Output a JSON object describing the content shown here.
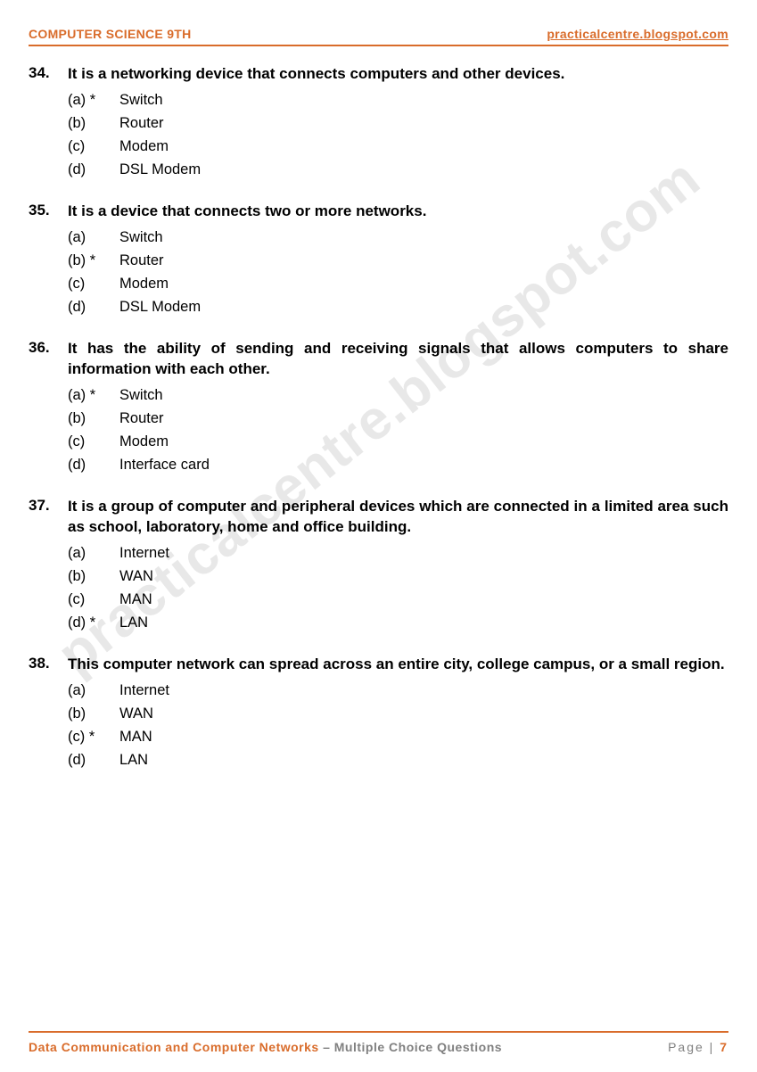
{
  "header": {
    "left": "COMPUTER SCIENCE 9TH",
    "right": "practicalcentre.blogspot.com"
  },
  "watermark": "practicalcentre.blogspot.com",
  "questions": [
    {
      "num": "34.",
      "text": "It is a networking device that connects computers and other devices.",
      "options": [
        {
          "label": "(a) *",
          "text": "Switch"
        },
        {
          "label": "(b)",
          "text": "Router"
        },
        {
          "label": "(c)",
          "text": "Modem"
        },
        {
          "label": "(d)",
          "text": "DSL Modem"
        }
      ]
    },
    {
      "num": "35.",
      "text": "It is a device that connects two or more networks.",
      "options": [
        {
          "label": "(a)",
          "text": "Switch"
        },
        {
          "label": "(b) *",
          "text": "Router"
        },
        {
          "label": "(c)",
          "text": "Modem"
        },
        {
          "label": "(d)",
          "text": "DSL Modem"
        }
      ]
    },
    {
      "num": "36.",
      "text": "It has the ability of sending and receiving signals that allows computers to share information with each other.",
      "options": [
        {
          "label": "(a) *",
          "text": "Switch"
        },
        {
          "label": "(b)",
          "text": "Router"
        },
        {
          "label": "(c)",
          "text": "Modem"
        },
        {
          "label": "(d)",
          "text": "Interface card"
        }
      ]
    },
    {
      "num": "37.",
      "text": "It is a group of computer and peripheral devices which are connected in a limited area such as school, laboratory, home and office building.",
      "options": [
        {
          "label": "(a)",
          "text": "Internet"
        },
        {
          "label": "(b)",
          "text": "WAN"
        },
        {
          "label": "(c)",
          "text": "MAN"
        },
        {
          "label": "(d) *",
          "text": "LAN"
        }
      ]
    },
    {
      "num": "38.",
      "text": "This computer network can spread across an entire city, college campus, or a small region.",
      "options": [
        {
          "label": "(a)",
          "text": "Internet"
        },
        {
          "label": "(b)",
          "text": "WAN"
        },
        {
          "label": "(c) *",
          "text": "MAN"
        },
        {
          "label": "(d)",
          "text": "LAN"
        }
      ]
    }
  ],
  "footer": {
    "topic": "Data Communication and Computer Networks",
    "subtitle": " – Multiple Choice Questions",
    "page_label": "Page | ",
    "page_num": "7"
  },
  "colors": {
    "accent": "#d96c2b",
    "text": "#000000",
    "muted": "#808080",
    "watermark": "rgba(130,130,130,0.18)",
    "background": "#ffffff"
  }
}
